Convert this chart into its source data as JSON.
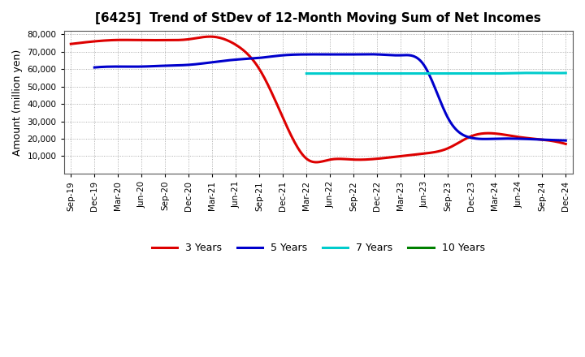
{
  "title": "[6425]  Trend of StDev of 12-Month Moving Sum of Net Incomes",
  "ylabel": "Amount (million yen)",
  "ylim": [
    0,
    82000
  ],
  "yticks": [
    10000,
    20000,
    30000,
    40000,
    50000,
    60000,
    70000,
    80000
  ],
  "background_color": "#ffffff",
  "plot_bg_color": "#ffffff",
  "grid_color": "#999999",
  "x_labels": [
    "Sep-19",
    "Dec-19",
    "Mar-20",
    "Jun-20",
    "Sep-20",
    "Dec-20",
    "Mar-21",
    "Jun-21",
    "Sep-21",
    "Dec-21",
    "Mar-22",
    "Jun-22",
    "Sep-22",
    "Dec-22",
    "Mar-23",
    "Jun-23",
    "Sep-23",
    "Dec-23",
    "Mar-24",
    "Jun-24",
    "Sep-24",
    "Dec-24"
  ],
  "series": {
    "3yr": {
      "color": "#dd0000",
      "label": "3 Years",
      "x": [
        0,
        1,
        2,
        3,
        4,
        5,
        6,
        7,
        8,
        9,
        10,
        11,
        12,
        13,
        14,
        15,
        16,
        17,
        18,
        19,
        20,
        21
      ],
      "y": [
        74500,
        76000,
        76800,
        76700,
        76700,
        77200,
        78700,
        74000,
        60000,
        32000,
        8500,
        8000,
        8000,
        8500,
        10000,
        11500,
        14500,
        21500,
        23000,
        21000,
        19500,
        17000
      ]
    },
    "5yr": {
      "color": "#0000cc",
      "label": "5 Years",
      "x": [
        1,
        2,
        3,
        4,
        5,
        6,
        7,
        8,
        9,
        10,
        11,
        12,
        13,
        14,
        15,
        16,
        17,
        18,
        19,
        20,
        21
      ],
      "y": [
        61000,
        61500,
        61500,
        62000,
        62500,
        64000,
        65500,
        66500,
        68000,
        68500,
        68500,
        68500,
        68500,
        68000,
        62000,
        32000,
        20500,
        20000,
        20000,
        19500,
        19000
      ]
    },
    "7yr": {
      "color": "#00cccc",
      "label": "7 Years",
      "x": [
        10,
        11,
        12,
        13,
        14,
        15,
        16,
        17,
        18,
        19,
        20,
        21
      ],
      "y": [
        57500,
        57500,
        57500,
        57500,
        57500,
        57500,
        57500,
        57500,
        57500,
        57800,
        57800,
        57800
      ]
    },
    "10yr": {
      "color": "#008000",
      "label": "10 Years",
      "x": [],
      "y": []
    }
  },
  "legend_items": [
    {
      "label": "3 Years",
      "color": "#dd0000"
    },
    {
      "label": "5 Years",
      "color": "#0000cc"
    },
    {
      "label": "7 Years",
      "color": "#00cccc"
    },
    {
      "label": "10 Years",
      "color": "#008000"
    }
  ]
}
